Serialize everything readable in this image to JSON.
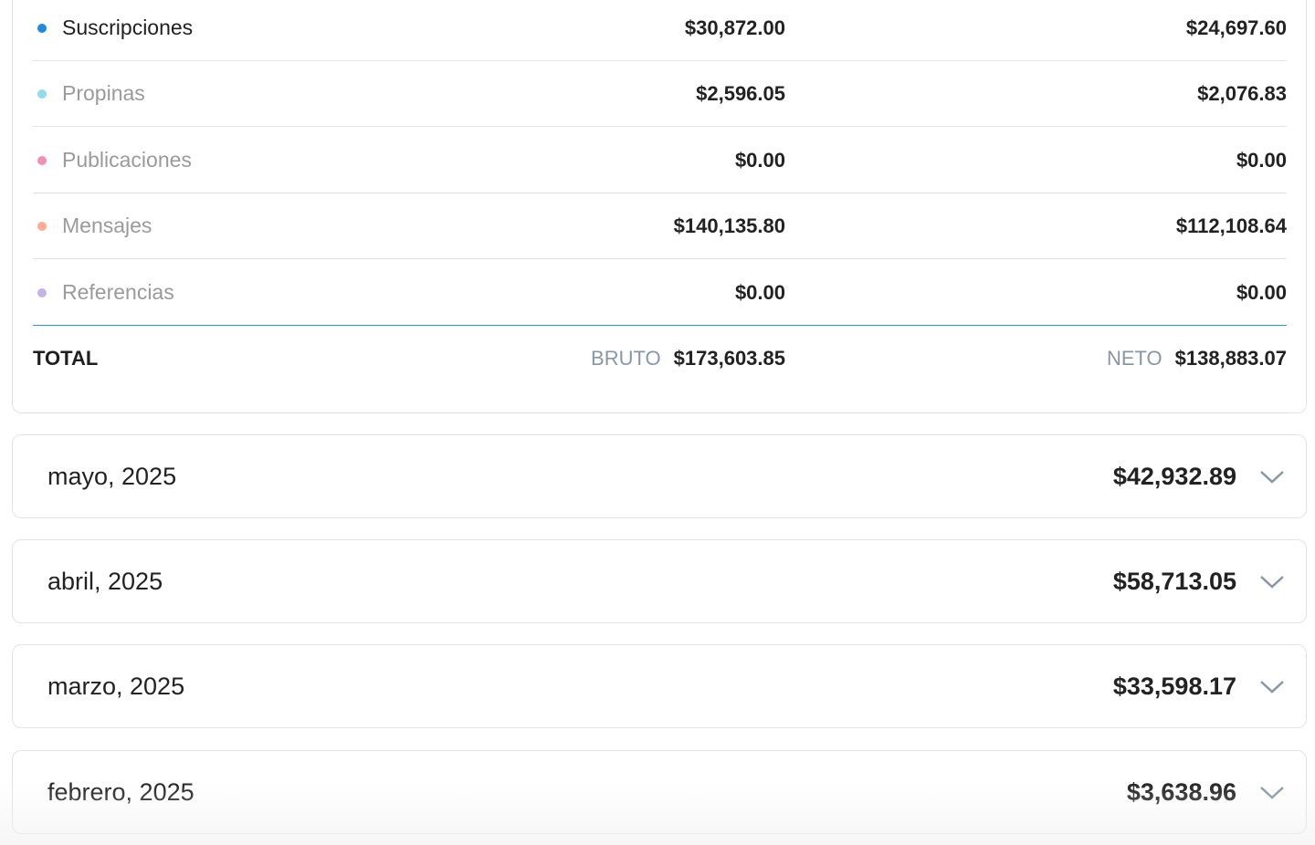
{
  "categories": [
    {
      "label": "Suscripciones",
      "gross": "$30,872.00",
      "net": "$24,697.60",
      "color": "#1e88e5",
      "active": true
    },
    {
      "label": "Propinas",
      "gross": "$2,596.05",
      "net": "$2,076.83",
      "color": "#8fdcea",
      "active": false
    },
    {
      "label": "Publicaciones",
      "gross": "$0.00",
      "net": "$0.00",
      "color": "#f48fb1",
      "active": false
    },
    {
      "label": "Mensajes",
      "gross": "$140,135.80",
      "net": "$112,108.64",
      "color": "#ffab91",
      "active": false
    },
    {
      "label": "Referencias",
      "gross": "$0.00",
      "net": "$0.00",
      "color": "#c5b3e6",
      "active": false
    }
  ],
  "total": {
    "label": "TOTAL",
    "gross_tag": "BRUTO",
    "gross": "$173,603.85",
    "net_tag": "NETO",
    "net": "$138,883.07"
  },
  "months": [
    {
      "name": "mayo, 2025",
      "amount": "$42,932.89"
    },
    {
      "name": "abril, 2025",
      "amount": "$58,713.05"
    },
    {
      "name": "marzo, 2025",
      "amount": "$33,598.17"
    },
    {
      "name": "febrero, 2025",
      "amount": "$3,638.96"
    }
  ],
  "accent_color": "#2196f3"
}
